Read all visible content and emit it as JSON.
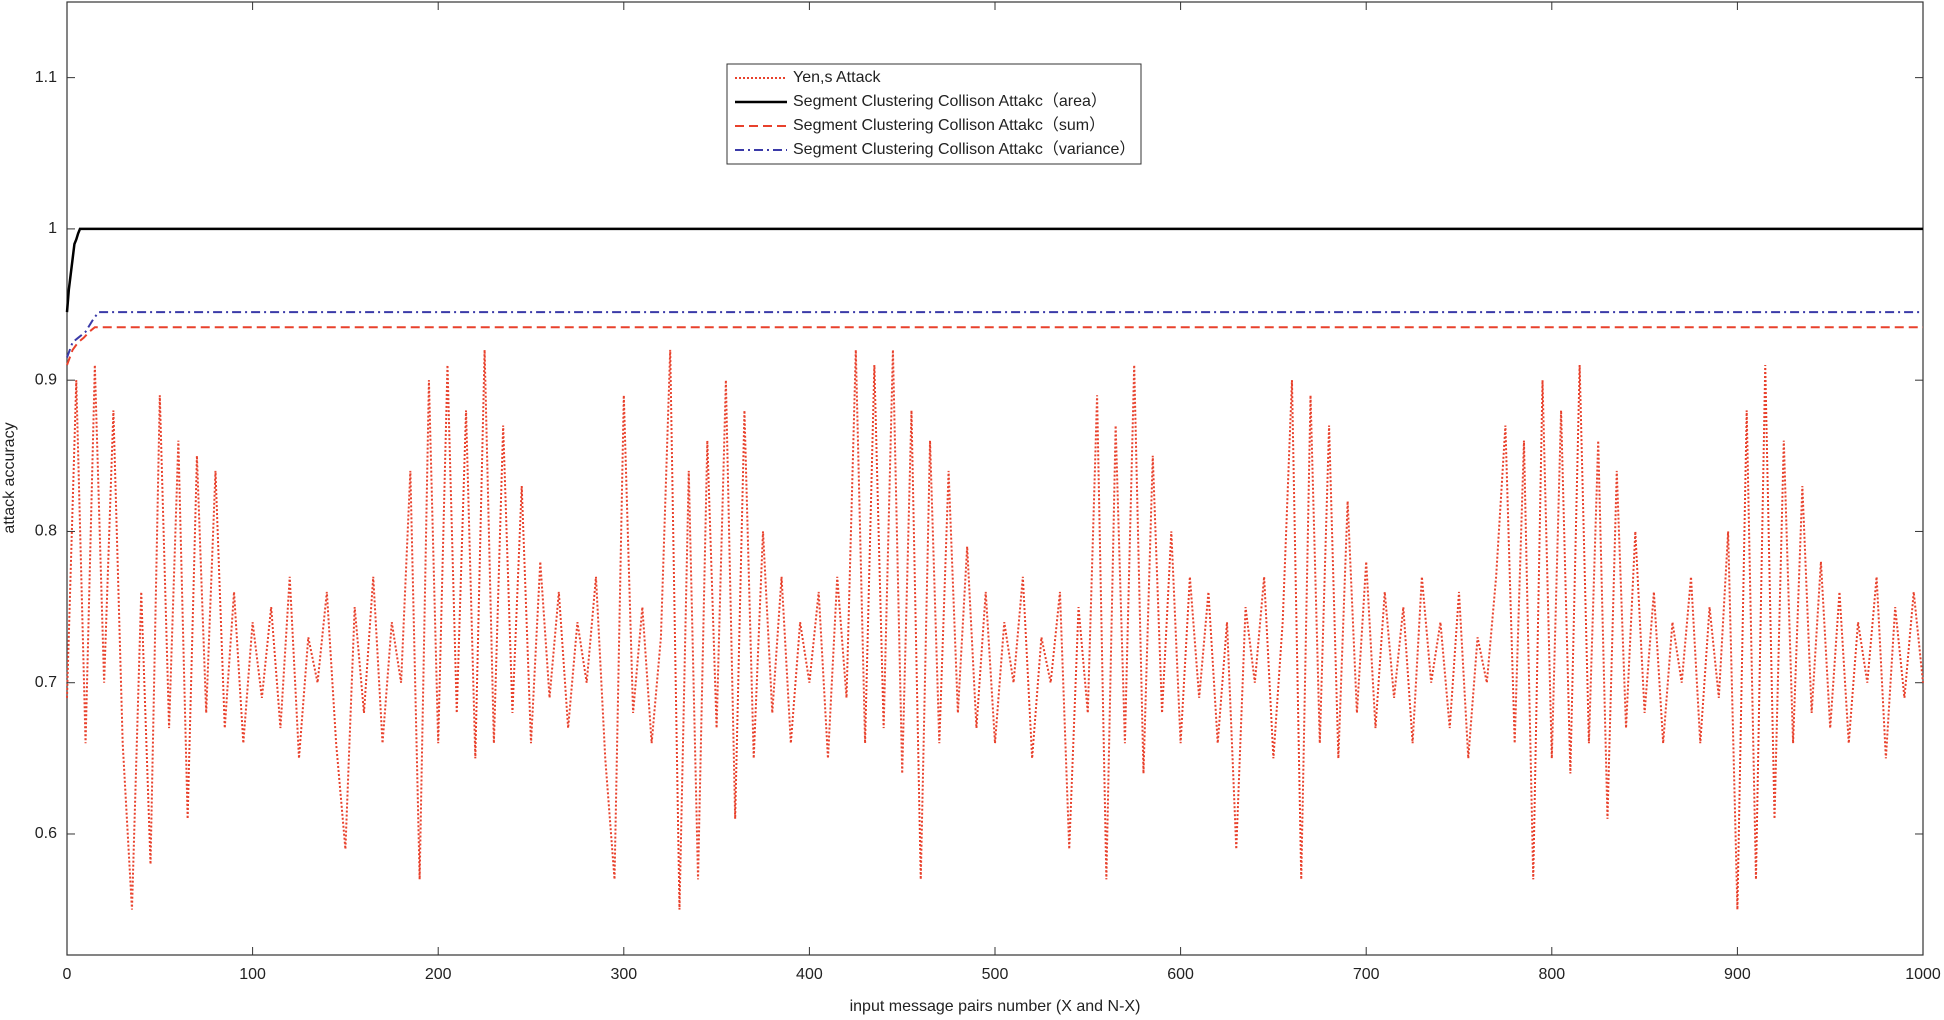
{
  "chart_data": {
    "type": "line",
    "xlabel": "input message pairs number (X and N-X)",
    "ylabel": "attack accuracy",
    "xlim": [
      0,
      1000
    ],
    "xticks": [
      0,
      100,
      200,
      300,
      400,
      500,
      600,
      700,
      800,
      900,
      1000
    ],
    "ylim": [
      0.52,
      1.15
    ],
    "yticks": [
      0.6,
      0.7,
      0.8,
      0.9,
      1,
      1.1
    ],
    "legend": "upper center",
    "series": [
      {
        "name": "Yen,s Attack",
        "color": "#e8412c",
        "dash": "dotted",
        "x": [
          0,
          5,
          10,
          15,
          20,
          25,
          30,
          35,
          40,
          45,
          50,
          55,
          60,
          65,
          70,
          75,
          80,
          85,
          90,
          95,
          100,
          105,
          110,
          115,
          120,
          125,
          130,
          135,
          140,
          145,
          150,
          155,
          160,
          165,
          170,
          175,
          180,
          185,
          190,
          195,
          200,
          205,
          210,
          215,
          220,
          225,
          230,
          235,
          240,
          245,
          250,
          255,
          260,
          265,
          270,
          275,
          280,
          285,
          290,
          295,
          300,
          305,
          310,
          315,
          320,
          325,
          330,
          335,
          340,
          345,
          350,
          355,
          360,
          365,
          370,
          375,
          380,
          385,
          390,
          395,
          400,
          405,
          410,
          415,
          420,
          425,
          430,
          435,
          440,
          445,
          450,
          455,
          460,
          465,
          470,
          475,
          480,
          485,
          490,
          495,
          500,
          505,
          510,
          515,
          520,
          525,
          530,
          535,
          540,
          545,
          550,
          555,
          560,
          565,
          570,
          575,
          580,
          585,
          590,
          595,
          600,
          605,
          610,
          615,
          620,
          625,
          630,
          635,
          640,
          645,
          650,
          655,
          660,
          665,
          670,
          675,
          680,
          685,
          690,
          695,
          700,
          705,
          710,
          715,
          720,
          725,
          730,
          735,
          740,
          745,
          750,
          755,
          760,
          765,
          770,
          775,
          780,
          785,
          790,
          795,
          800,
          805,
          810,
          815,
          820,
          825,
          830,
          835,
          840,
          845,
          850,
          855,
          860,
          865,
          870,
          875,
          880,
          885,
          890,
          895,
          900,
          905,
          910,
          915,
          920,
          925,
          930,
          935,
          940,
          945,
          950,
          955,
          960,
          965,
          970,
          975,
          980,
          985,
          990,
          995,
          1000
        ],
        "values": [
          0.69,
          0.9,
          0.66,
          0.91,
          0.7,
          0.88,
          0.66,
          0.55,
          0.76,
          0.58,
          0.89,
          0.67,
          0.86,
          0.61,
          0.85,
          0.68,
          0.84,
          0.67,
          0.76,
          0.66,
          0.74,
          0.69,
          0.75,
          0.67,
          0.77,
          0.65,
          0.73,
          0.7,
          0.76,
          0.66,
          0.59,
          0.75,
          0.68,
          0.77,
          0.66,
          0.74,
          0.7,
          0.84,
          0.57,
          0.9,
          0.66,
          0.91,
          0.68,
          0.88,
          0.65,
          0.92,
          0.66,
          0.87,
          0.68,
          0.83,
          0.66,
          0.78,
          0.69,
          0.76,
          0.67,
          0.74,
          0.7,
          0.77,
          0.65,
          0.57,
          0.89,
          0.68,
          0.75,
          0.66,
          0.73,
          0.92,
          0.55,
          0.84,
          0.57,
          0.86,
          0.67,
          0.9,
          0.61,
          0.88,
          0.65,
          0.8,
          0.68,
          0.77,
          0.66,
          0.74,
          0.7,
          0.76,
          0.65,
          0.77,
          0.69,
          0.92,
          0.66,
          0.91,
          0.67,
          0.92,
          0.64,
          0.88,
          0.57,
          0.86,
          0.66,
          0.84,
          0.68,
          0.79,
          0.67,
          0.76,
          0.66,
          0.74,
          0.7,
          0.77,
          0.65,
          0.73,
          0.7,
          0.76,
          0.59,
          0.75,
          0.68,
          0.89,
          0.57,
          0.87,
          0.66,
          0.91,
          0.64,
          0.85,
          0.68,
          0.8,
          0.66,
          0.77,
          0.69,
          0.76,
          0.66,
          0.74,
          0.59,
          0.75,
          0.7,
          0.77,
          0.65,
          0.74,
          0.9,
          0.57,
          0.89,
          0.66,
          0.87,
          0.65,
          0.82,
          0.68,
          0.78,
          0.67,
          0.76,
          0.69,
          0.75,
          0.66,
          0.77,
          0.7,
          0.74,
          0.67,
          0.76,
          0.65,
          0.73,
          0.7,
          0.77,
          0.87,
          0.66,
          0.86,
          0.57,
          0.9,
          0.65,
          0.88,
          0.64,
          0.91,
          0.66,
          0.86,
          0.61,
          0.84,
          0.67,
          0.8,
          0.68,
          0.76,
          0.66,
          0.74,
          0.7,
          0.77,
          0.66,
          0.75,
          0.69,
          0.8,
          0.55,
          0.88,
          0.57,
          0.91,
          0.61,
          0.86,
          0.66,
          0.83,
          0.68,
          0.78,
          0.67,
          0.76,
          0.66,
          0.74,
          0.7,
          0.77,
          0.65,
          0.75,
          0.69,
          0.76,
          0.7
        ]
      },
      {
        "name": "Segment Clustering Collison Attakc（area）",
        "color": "#000000",
        "dash": "solid",
        "x": [
          0,
          1,
          2,
          3,
          4,
          5,
          6,
          7,
          1000
        ],
        "values": [
          0.945,
          0.96,
          0.97,
          0.98,
          0.99,
          0.993,
          0.997,
          1,
          1
        ]
      },
      {
        "name": "Segment Clustering Collison Attakc（sum）",
        "color": "#e8412c",
        "dash": "dashed",
        "x": [
          0,
          3,
          6,
          9,
          12,
          15,
          1000
        ],
        "values": [
          0.91,
          0.92,
          0.925,
          0.928,
          0.932,
          0.935,
          0.935
        ]
      },
      {
        "name": "Segment Clustering Collison Attakc（variance）",
        "color": "#3a3aa8",
        "dash": "dashdot",
        "x": [
          0,
          3,
          6,
          10,
          14,
          17,
          1000
        ],
        "values": [
          0.915,
          0.925,
          0.928,
          0.932,
          0.94,
          0.945,
          0.945
        ]
      }
    ]
  }
}
